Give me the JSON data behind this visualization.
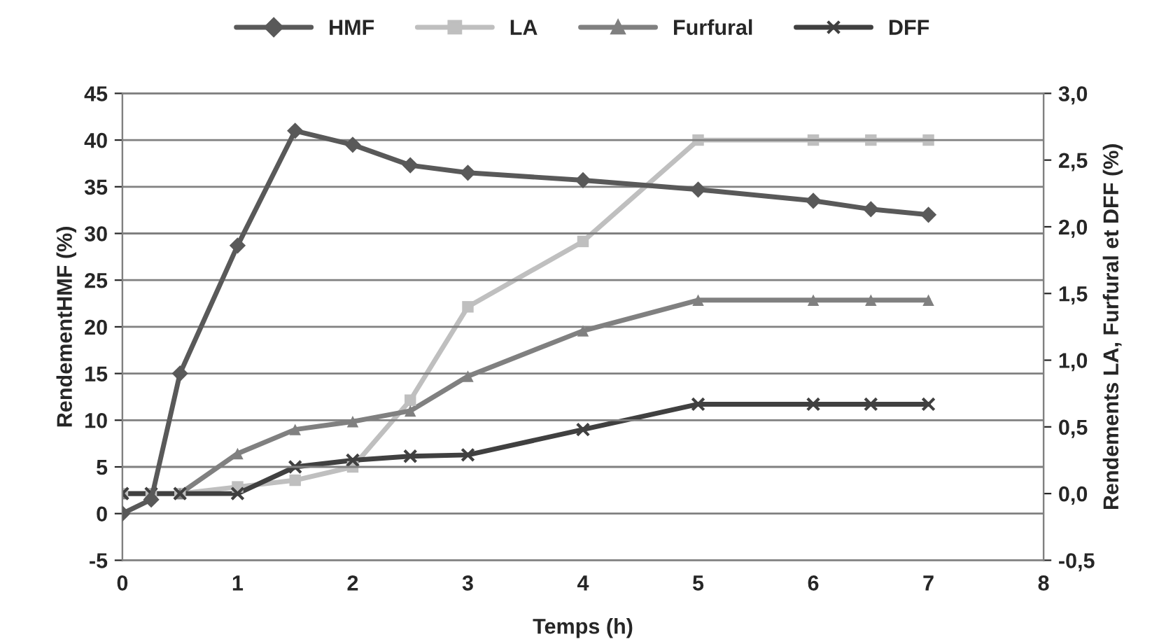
{
  "chart_data": {
    "type": "line",
    "xlabel": "Temps (h)",
    "ylabel": "RendementHMF (%)",
    "y2label": "Rendements LA, Furfural et DFF (%)",
    "x": [
      0,
      0.25,
      0.5,
      1,
      1.5,
      2,
      2.5,
      3,
      4,
      5,
      6,
      6.5,
      7
    ],
    "series": [
      {
        "name": "HMF",
        "color": "#595959",
        "marker": "diamond",
        "values": [
          0,
          1.5,
          15,
          28.7,
          41,
          39.5,
          37.3,
          36.5,
          35.7,
          34.7,
          33.5,
          32.6,
          32
        ]
      },
      {
        "name": "LA",
        "color": "#bfbfbf",
        "marker": "square",
        "axis": "y2",
        "values": [
          0.0,
          0.0,
          0.0,
          0.05,
          0.1,
          0.2,
          0.7,
          1.4,
          1.89,
          2.65,
          2.65,
          2.65,
          2.65
        ]
      },
      {
        "name": "Furfural",
        "color": "#808080",
        "marker": "triangle",
        "axis": "y2",
        "values": [
          0.0,
          0.0,
          0.0,
          0.3,
          0.48,
          0.54,
          0.62,
          0.88,
          1.22,
          1.45,
          1.45,
          1.45,
          1.45
        ]
      },
      {
        "name": "DFF",
        "color": "#404040",
        "marker": "cross",
        "axis": "y2",
        "values": [
          0.0,
          0.0,
          0.0,
          0.0,
          0.2,
          0.25,
          0.28,
          0.29,
          0.48,
          0.67,
          0.67,
          0.67,
          0.67
        ]
      }
    ],
    "xlim": [
      0,
      8
    ],
    "xticks": [
      0,
      1,
      2,
      3,
      4,
      5,
      6,
      7,
      8
    ],
    "ylim": [
      -5,
      45
    ],
    "yticks": [
      -5,
      0,
      5,
      10,
      15,
      20,
      25,
      30,
      35,
      40,
      45
    ],
    "y2lim": [
      -0.5,
      3.0
    ],
    "y2ticks": [
      {
        "value": -0.5,
        "label": "-0,5"
      },
      {
        "value": 0.0,
        "label": "0,0"
      },
      {
        "value": 0.5,
        "label": "0,5"
      },
      {
        "value": 1.0,
        "label": "1,0"
      },
      {
        "value": 1.5,
        "label": "1,5"
      },
      {
        "value": 2.0,
        "label": "2,0"
      },
      {
        "value": 2.5,
        "label": "2,5"
      },
      {
        "value": 3.0,
        "label": "3,0"
      }
    ],
    "grid": "y",
    "legend": "top",
    "line_style": "solid"
  }
}
